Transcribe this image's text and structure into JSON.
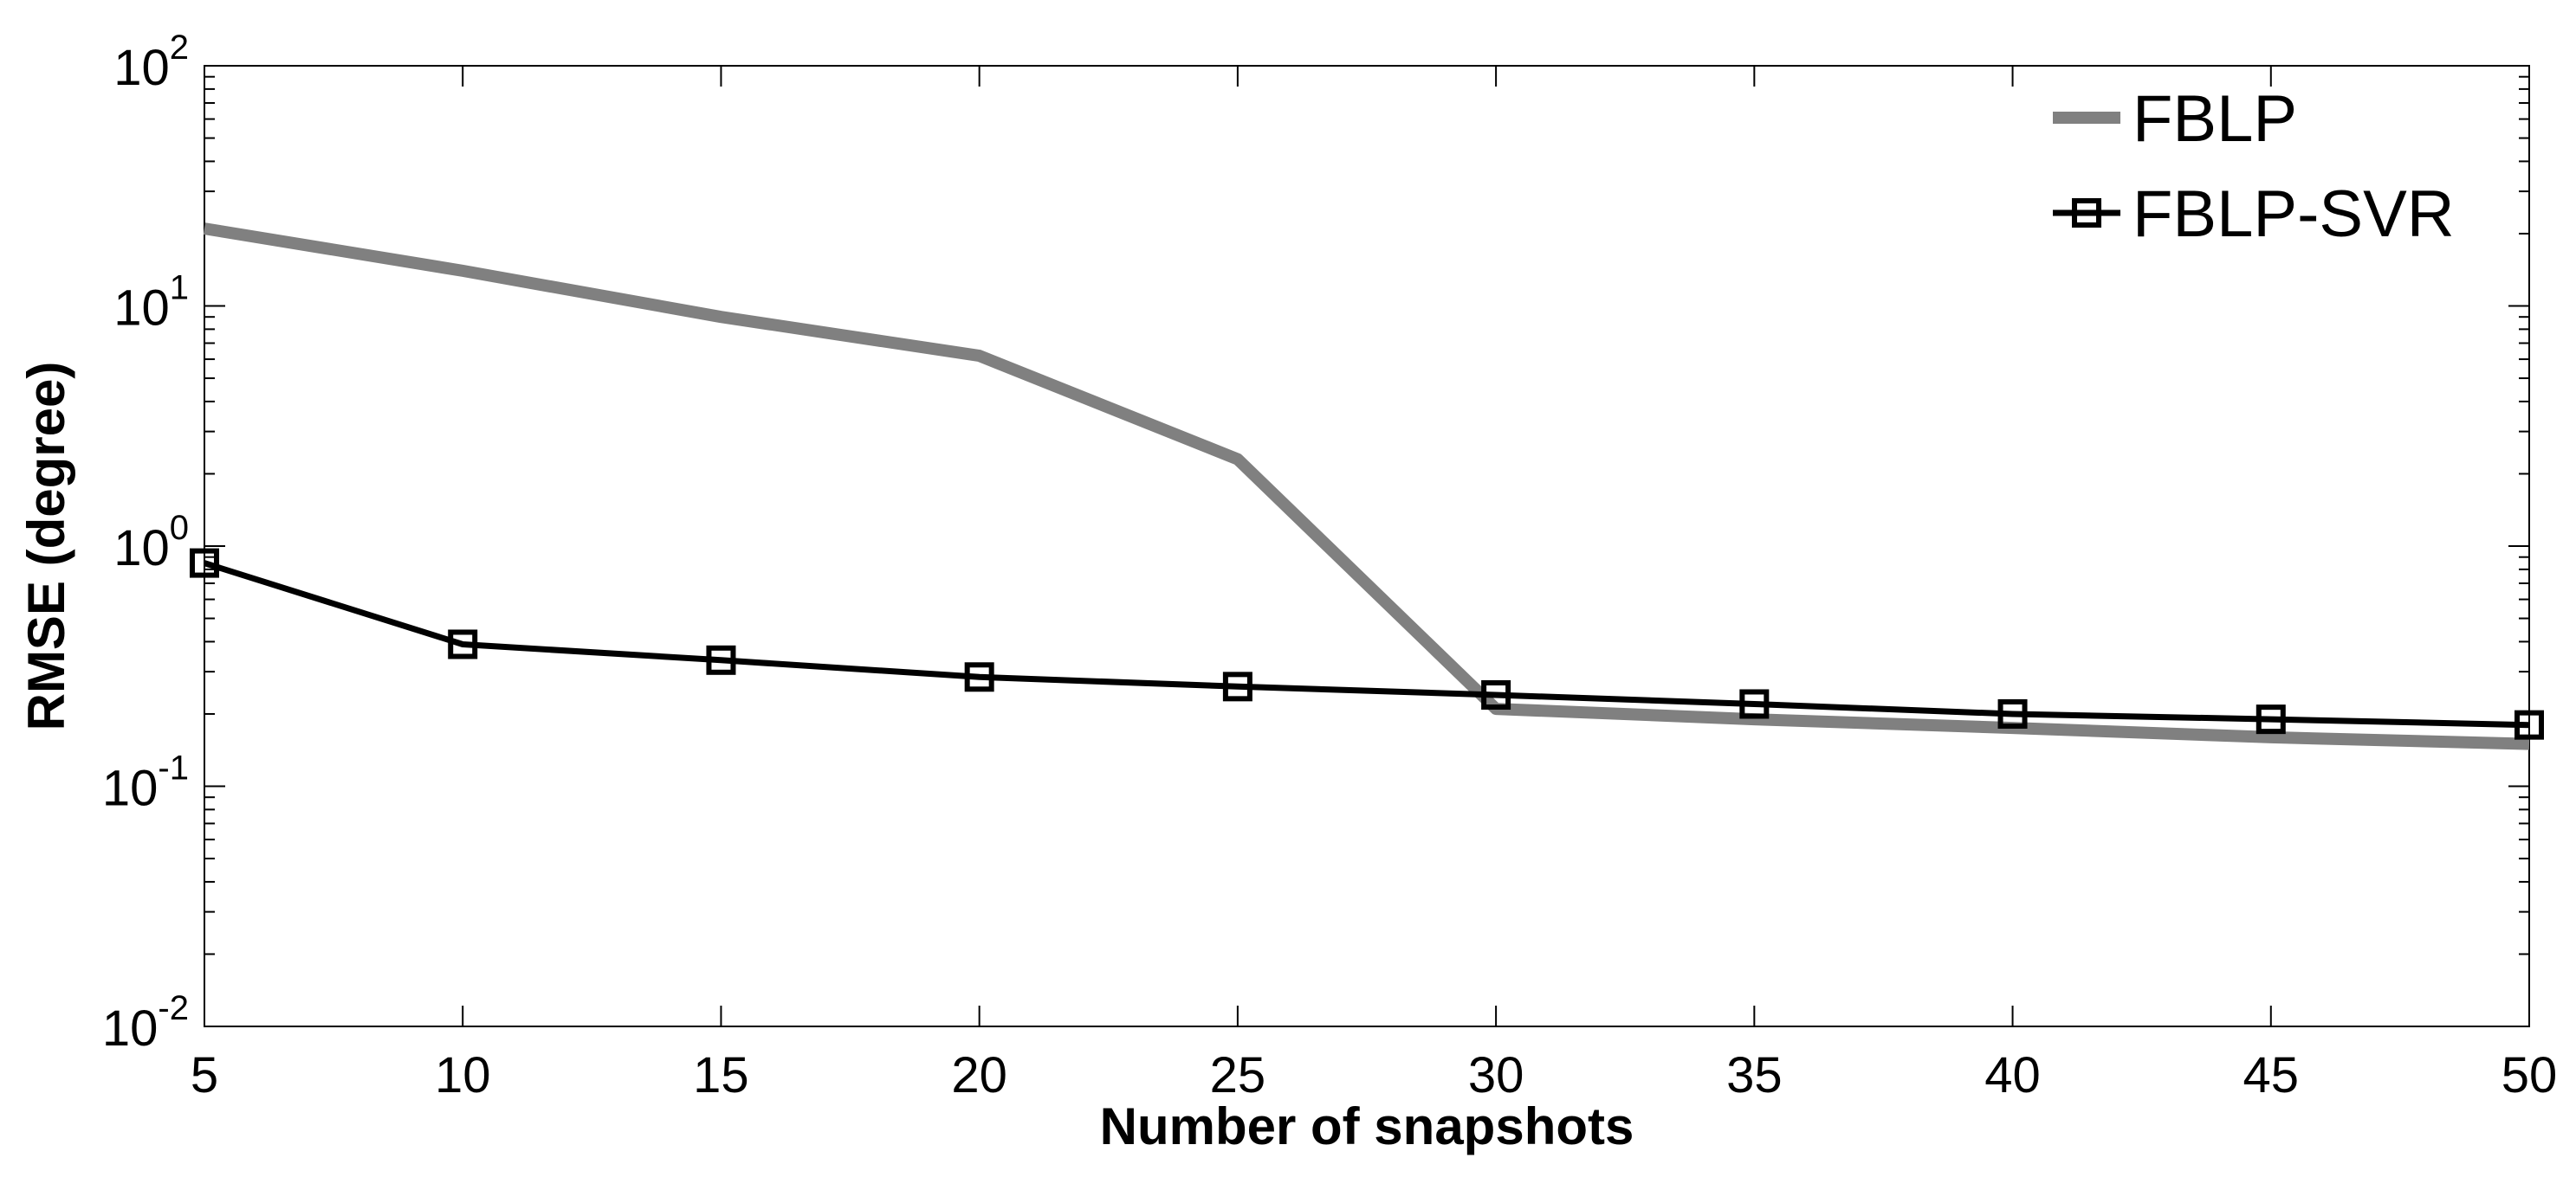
{
  "chart_data": {
    "type": "line",
    "title": "",
    "xlabel": "Number of snapshots",
    "ylabel": "RMSE (degree)",
    "x": [
      5,
      10,
      15,
      20,
      25,
      30,
      35,
      40,
      45,
      50
    ],
    "xlim": [
      5,
      50
    ],
    "ylim": [
      0.01,
      100
    ],
    "yscale": "log",
    "x_ticks": [
      "5",
      "10",
      "15",
      "20",
      "25",
      "30",
      "35",
      "40",
      "45",
      "50"
    ],
    "y_ticks": [
      {
        "base": "10",
        "exp": "-2",
        "value": 0.01
      },
      {
        "base": "10",
        "exp": "-1",
        "value": 0.1
      },
      {
        "base": "10",
        "exp": "0",
        "value": 1
      },
      {
        "base": "10",
        "exp": "1",
        "value": 10
      },
      {
        "base": "10",
        "exp": "2",
        "value": 100
      }
    ],
    "grid": false,
    "legend_position": "top-right",
    "series": [
      {
        "name": "FBLP",
        "color": "#808080",
        "marker": "none",
        "values": [
          21,
          14,
          9,
          6.2,
          2.3,
          0.21,
          0.19,
          0.175,
          0.16,
          0.15
        ]
      },
      {
        "name": "FBLP-SVR",
        "color": "#000000",
        "marker": "square",
        "values": [
          0.85,
          0.39,
          0.335,
          0.285,
          0.26,
          0.24,
          0.22,
          0.2,
          0.19,
          0.18
        ]
      }
    ]
  }
}
